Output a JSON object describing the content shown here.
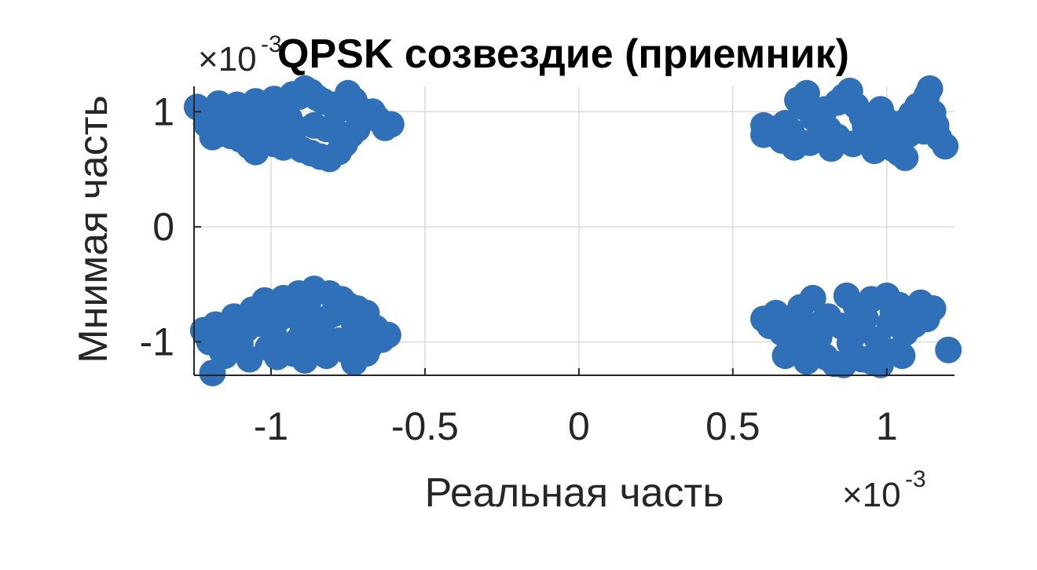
{
  "chart_data": {
    "type": "scatter",
    "title": "QPSK созвездие (приемник)",
    "top_clipped_title": "",
    "xlabel": "Реальная часть",
    "ylabel": "Мнимая часть",
    "x_exponent_label": "×10",
    "x_exponent_power": "-3",
    "y_exponent_label": "×10",
    "y_exponent_power": "-3",
    "xlim": [
      -1.25,
      1.22
    ],
    "ylim": [
      -1.29,
      1.22
    ],
    "x_ticks": [
      -1,
      -0.5,
      0,
      0.5,
      1
    ],
    "x_tick_labels": [
      "-1",
      "-0.5",
      "0",
      "0.5",
      "1"
    ],
    "y_ticks": [
      -1,
      0,
      1
    ],
    "y_tick_labels": [
      "-1",
      "0",
      "1"
    ],
    "grid": true,
    "marker_color": "#3070b8",
    "series": [
      {
        "points": [
          [
            -1.24,
            1.04
          ],
          [
            -1.2,
            0.98
          ],
          [
            -1.17,
            1.07
          ],
          [
            -1.15,
            0.96
          ],
          [
            -1.13,
            1.0
          ],
          [
            -1.11,
            1.06
          ],
          [
            -1.09,
            0.93
          ],
          [
            -1.07,
            1.01
          ],
          [
            -1.05,
            1.09
          ],
          [
            -1.03,
            0.97
          ],
          [
            -1.01,
            1.04
          ],
          [
            -0.99,
            1.11
          ],
          [
            -0.97,
            0.99
          ],
          [
            -0.95,
            1.07
          ],
          [
            -0.93,
            1.15
          ],
          [
            -0.91,
            1.13
          ],
          [
            -0.89,
            1.2
          ],
          [
            -0.87,
            1.17
          ],
          [
            -0.85,
            1.12
          ],
          [
            -0.83,
            1.09
          ],
          [
            -0.8,
            1.06
          ],
          [
            -0.77,
            1.03
          ],
          [
            -0.75,
            1.16
          ],
          [
            -0.73,
            1.1
          ],
          [
            -0.71,
            1.02
          ],
          [
            -0.69,
            0.96
          ],
          [
            -0.67,
            1.0
          ],
          [
            -0.65,
            0.93
          ],
          [
            -0.63,
            0.86
          ],
          [
            -0.61,
            0.89
          ],
          [
            -1.19,
            0.78
          ],
          [
            -1.16,
            0.81
          ],
          [
            -1.13,
            0.79
          ],
          [
            -1.1,
            0.76
          ],
          [
            -1.07,
            0.7
          ],
          [
            -1.05,
            0.65
          ],
          [
            -1.02,
            0.73
          ],
          [
            -0.99,
            0.72
          ],
          [
            -0.96,
            0.69
          ],
          [
            -0.93,
            0.71
          ],
          [
            -0.9,
            0.67
          ],
          [
            -0.87,
            0.64
          ],
          [
            -0.84,
            0.61
          ],
          [
            -0.81,
            0.59
          ],
          [
            -0.78,
            0.65
          ],
          [
            -0.76,
            0.72
          ],
          [
            -0.74,
            0.8
          ],
          [
            -0.72,
            0.85
          ],
          [
            -1.21,
            0.89
          ],
          [
            -1.18,
            0.93
          ],
          [
            -1.14,
            0.88
          ],
          [
            -1.08,
            0.84
          ],
          [
            -1.04,
            0.87
          ],
          [
            -1.0,
            0.82
          ],
          [
            -0.97,
            0.9
          ],
          [
            -0.94,
            0.94
          ],
          [
            -0.92,
            0.86
          ],
          [
            -0.86,
            0.88
          ],
          [
            -0.82,
            0.85
          ],
          [
            -0.79,
            0.83
          ],
          [
            0.6,
            0.88
          ],
          [
            0.6,
            0.8
          ],
          [
            0.63,
            0.85
          ],
          [
            0.65,
            0.78
          ],
          [
            0.67,
            0.9
          ],
          [
            0.69,
            0.83
          ],
          [
            0.71,
            1.1
          ],
          [
            0.73,
            1.04
          ],
          [
            0.74,
            1.16
          ],
          [
            0.76,
            0.95
          ],
          [
            0.78,
            0.9
          ],
          [
            0.79,
            1.0
          ],
          [
            0.81,
            0.85
          ],
          [
            0.82,
            0.68
          ],
          [
            0.84,
            0.78
          ],
          [
            0.86,
            1.13
          ],
          [
            0.88,
            1.18
          ],
          [
            0.9,
            1.05
          ],
          [
            0.92,
            0.96
          ],
          [
            0.93,
            0.87
          ],
          [
            0.95,
            0.76
          ],
          [
            0.96,
            0.66
          ],
          [
            0.98,
            1.02
          ],
          [
            1.0,
            0.92
          ],
          [
            1.01,
            0.82
          ],
          [
            1.03,
            0.72
          ],
          [
            1.04,
            0.64
          ],
          [
            1.05,
            0.9
          ],
          [
            1.07,
            0.8
          ],
          [
            1.08,
            0.98
          ],
          [
            1.1,
            1.05
          ],
          [
            1.11,
            0.93
          ],
          [
            1.12,
            0.83
          ],
          [
            1.13,
            1.14
          ],
          [
            1.14,
            1.2
          ],
          [
            1.15,
            0.99
          ],
          [
            1.16,
            0.88
          ],
          [
            1.17,
            0.77
          ],
          [
            1.19,
            0.7
          ],
          [
            0.66,
            0.75
          ],
          [
            0.7,
            0.69
          ],
          [
            0.75,
            0.73
          ],
          [
            0.97,
            0.74
          ],
          [
            1.02,
            0.68
          ],
          [
            1.06,
            0.6
          ],
          [
            0.89,
            0.72
          ],
          [
            0.8,
            1.02
          ],
          [
            0.84,
            1.08
          ],
          [
            -1.22,
            -0.9
          ],
          [
            -1.2,
            -1.0
          ],
          [
            -1.18,
            -0.85
          ],
          [
            -1.16,
            -1.08
          ],
          [
            -1.14,
            -0.93
          ],
          [
            -1.12,
            -0.78
          ],
          [
            -1.1,
            -1.02
          ],
          [
            -1.08,
            -0.89
          ],
          [
            -1.06,
            -0.72
          ],
          [
            -1.04,
            -0.84
          ],
          [
            -1.02,
            -0.64
          ],
          [
            -1.01,
            -1.05
          ],
          [
            -0.99,
            -0.94
          ],
          [
            -0.97,
            -0.79
          ],
          [
            -0.95,
            -0.69
          ],
          [
            -0.93,
            -1.1
          ],
          [
            -0.91,
            -0.98
          ],
          [
            -0.9,
            -0.84
          ],
          [
            -0.88,
            -0.66
          ],
          [
            -0.86,
            -0.54
          ],
          [
            -0.85,
            -1.05
          ],
          [
            -0.83,
            -0.94
          ],
          [
            -0.81,
            -0.58
          ],
          [
            -0.8,
            -0.76
          ],
          [
            -0.78,
            -0.99
          ],
          [
            -0.76,
            -1.07
          ],
          [
            -0.75,
            -0.68
          ],
          [
            -0.73,
            -0.84
          ],
          [
            -0.71,
            -0.93
          ],
          [
            -0.69,
            -0.75
          ],
          [
            -0.68,
            -1.04
          ],
          [
            -0.66,
            -0.88
          ],
          [
            -0.64,
            -0.98
          ],
          [
            -0.62,
            -0.94
          ],
          [
            -1.19,
            -1.27
          ],
          [
            -1.15,
            -1.12
          ],
          [
            -1.07,
            -1.15
          ],
          [
            -0.98,
            -1.13
          ],
          [
            -0.89,
            -1.16
          ],
          [
            -0.82,
            -1.12
          ],
          [
            -0.73,
            -1.18
          ],
          [
            -0.69,
            -1.1
          ],
          [
            -0.96,
            -0.62
          ],
          [
            -0.91,
            -0.58
          ],
          [
            -0.77,
            -0.63
          ],
          [
            -0.72,
            -0.71
          ],
          [
            -1.1,
            -0.97
          ],
          [
            -0.86,
            -0.79
          ],
          [
            0.6,
            -0.8
          ],
          [
            0.62,
            -0.86
          ],
          [
            0.64,
            -0.75
          ],
          [
            0.66,
            -0.92
          ],
          [
            0.68,
            -0.82
          ],
          [
            0.7,
            -1.01
          ],
          [
            0.72,
            -0.7
          ],
          [
            0.73,
            -0.88
          ],
          [
            0.75,
            -1.09
          ],
          [
            0.76,
            -0.62
          ],
          [
            0.78,
            -0.96
          ],
          [
            0.8,
            -1.13
          ],
          [
            0.81,
            -0.78
          ],
          [
            0.83,
            -1.19
          ],
          [
            0.85,
            -0.86
          ],
          [
            0.87,
            -0.6
          ],
          [
            0.88,
            -1.01
          ],
          [
            0.9,
            -0.69
          ],
          [
            0.92,
            -1.15
          ],
          [
            0.93,
            -0.79
          ],
          [
            0.95,
            -0.63
          ],
          [
            0.97,
            -0.98
          ],
          [
            0.98,
            -1.2
          ],
          [
            1.0,
            -0.6
          ],
          [
            1.01,
            -0.84
          ],
          [
            1.03,
            -1.08
          ],
          [
            1.04,
            -0.68
          ],
          [
            1.06,
            -0.92
          ],
          [
            1.07,
            -0.77
          ],
          [
            1.09,
            -0.85
          ],
          [
            1.11,
            -0.66
          ],
          [
            1.13,
            -0.8
          ],
          [
            1.15,
            -0.71
          ],
          [
            1.2,
            -1.07
          ],
          [
            0.67,
            -1.12
          ],
          [
            0.74,
            -1.17
          ],
          [
            0.86,
            -1.2
          ],
          [
            0.95,
            -1.17
          ],
          [
            1.05,
            -1.12
          ],
          [
            0.79,
            -0.83
          ],
          [
            0.9,
            -0.92
          ],
          [
            1.02,
            -0.74
          ]
        ]
      }
    ]
  }
}
